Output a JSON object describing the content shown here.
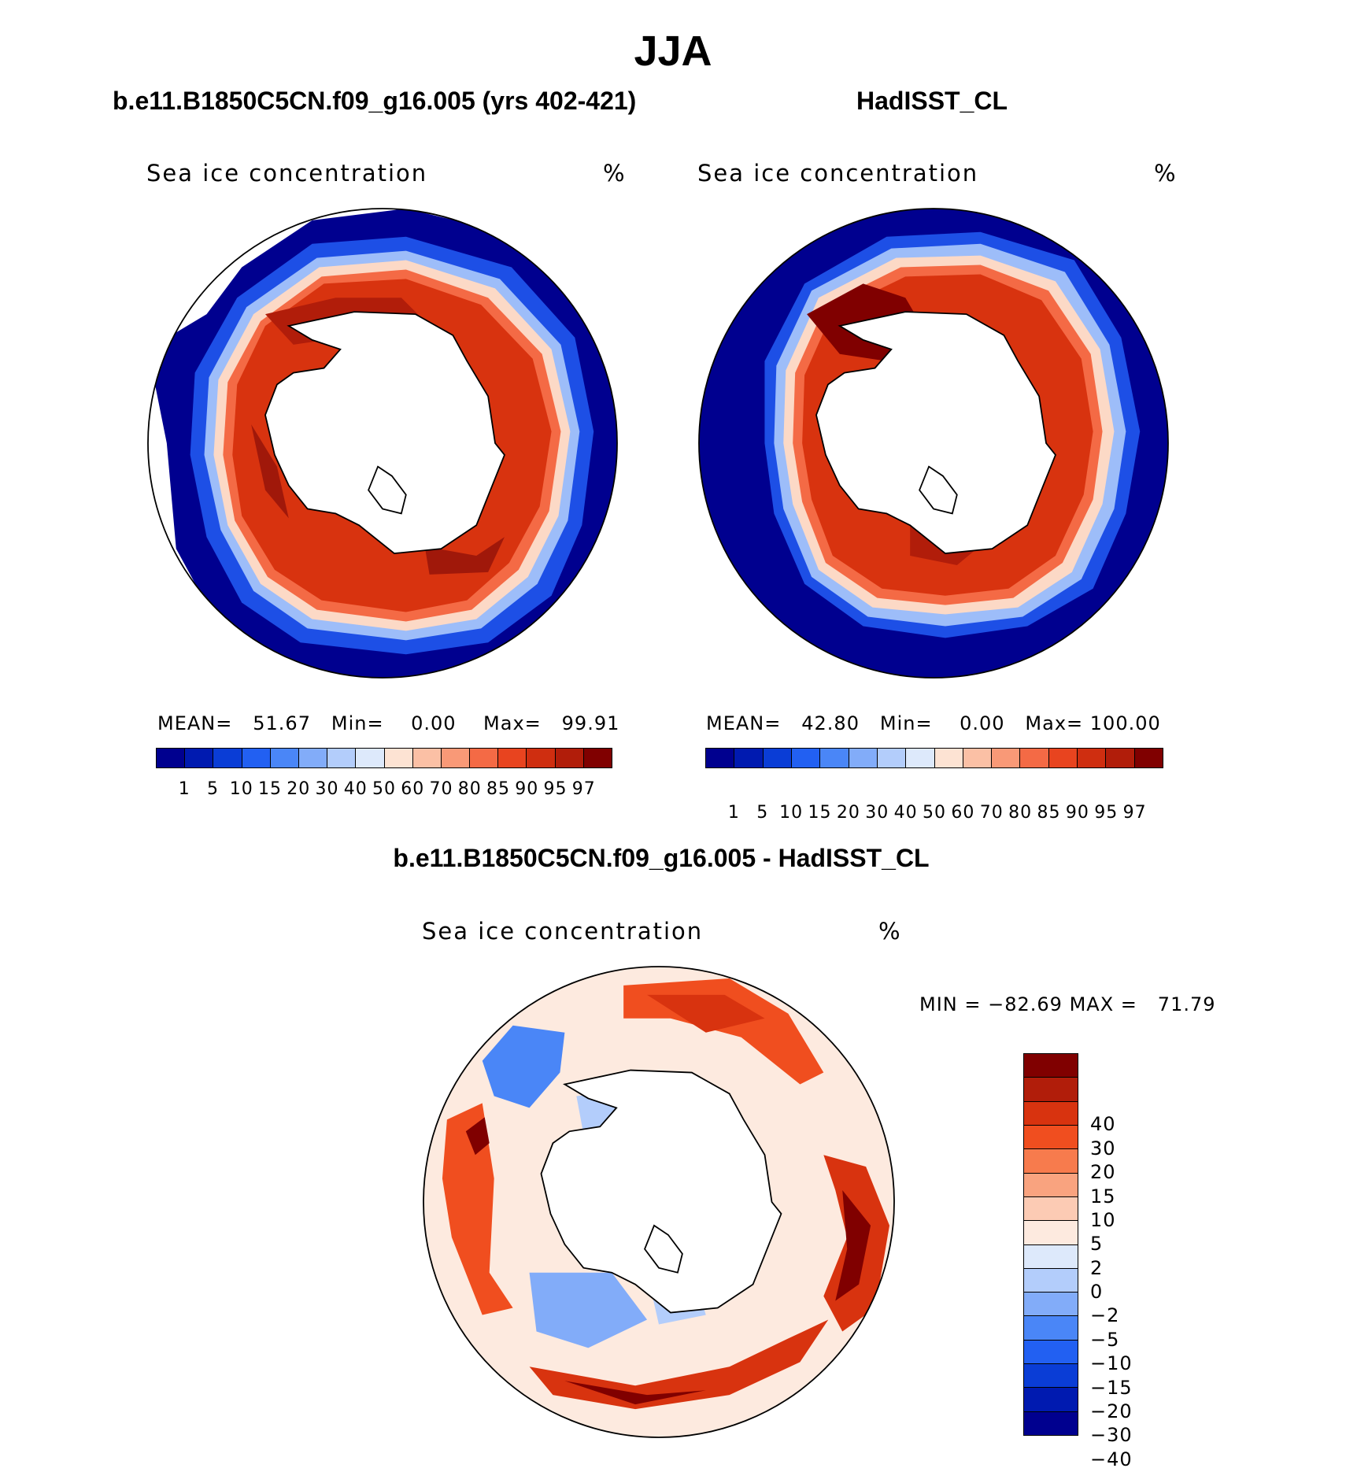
{
  "figure": {
    "title": "JJA"
  },
  "panels": {
    "model": {
      "title": "b.e11.B1850C5CN.f09_g16.005 (yrs 402-421)",
      "variable": "Sea ice concentration",
      "units": "%",
      "mean_label": "MEAN=",
      "mean": "51.67",
      "min_label": "Min=",
      "min": "0.00",
      "max_label": "Max=",
      "max": "99.91"
    },
    "obs": {
      "title": "HadISST_CL",
      "variable": "Sea ice concentration",
      "units": "%",
      "mean_label": "MEAN=",
      "mean": "42.80",
      "min_label": "Min=",
      "min": "0.00",
      "max_label": "Max=",
      "max": "100.00"
    },
    "diff": {
      "title": "b.e11.B1850C5CN.f09_g16.005 - HadISST_CL",
      "variable": "Sea ice concentration",
      "units": "%",
      "min_label": "MIN =",
      "min": "−82.69",
      "max_label": "MAX =",
      "max": "71.79"
    }
  },
  "colorbars": {
    "concentration": {
      "levels": [
        "1",
        "5",
        "10",
        "15",
        "20",
        "30",
        "40",
        "50",
        "60",
        "70",
        "80",
        "85",
        "90",
        "95",
        "97"
      ],
      "colors": [
        "#00008f",
        "#001ab0",
        "#0a3dd6",
        "#2260f2",
        "#4a86f7",
        "#82acf9",
        "#b3cdfb",
        "#dde9fb",
        "#fde3d3",
        "#fbc0a5",
        "#f99977",
        "#f46a45",
        "#e8441f",
        "#cf2e10",
        "#b11d0a",
        "#800000"
      ]
    },
    "difference": {
      "levels": [
        "40",
        "30",
        "20",
        "15",
        "10",
        "5",
        "2",
        "0",
        "−2",
        "−5",
        "−10",
        "−15",
        "−20",
        "−30",
        "−40"
      ],
      "colors": [
        "#800000",
        "#b11d0a",
        "#d8330f",
        "#f04e1f",
        "#f77b4d",
        "#f9a37f",
        "#fccbb4",
        "#fdeadf",
        "#dde9fb",
        "#b3cdfb",
        "#82acf9",
        "#4a86f7",
        "#2260f2",
        "#0a3dd6",
        "#001ab0",
        "#00008f"
      ]
    }
  }
}
